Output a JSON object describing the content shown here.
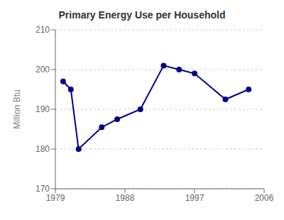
{
  "chart_data": {
    "type": "line",
    "title": "Primary Energy Use per Household",
    "ylabel": "Million Btu",
    "x": [
      1980,
      1981,
      1982,
      1985,
      1987,
      1990,
      1993,
      1995,
      1997,
      2001,
      2004
    ],
    "values": [
      197,
      195,
      180,
      185.5,
      187.5,
      190,
      201,
      200,
      199,
      192.5,
      195
    ],
    "xlim": [
      1979,
      2006
    ],
    "ylim": [
      170,
      210
    ],
    "xticks": [
      1979,
      1988,
      1997,
      2006
    ],
    "yticks": [
      170,
      180,
      190,
      200,
      210
    ],
    "color": "#00008B",
    "marker": "circle",
    "grid": "y"
  }
}
